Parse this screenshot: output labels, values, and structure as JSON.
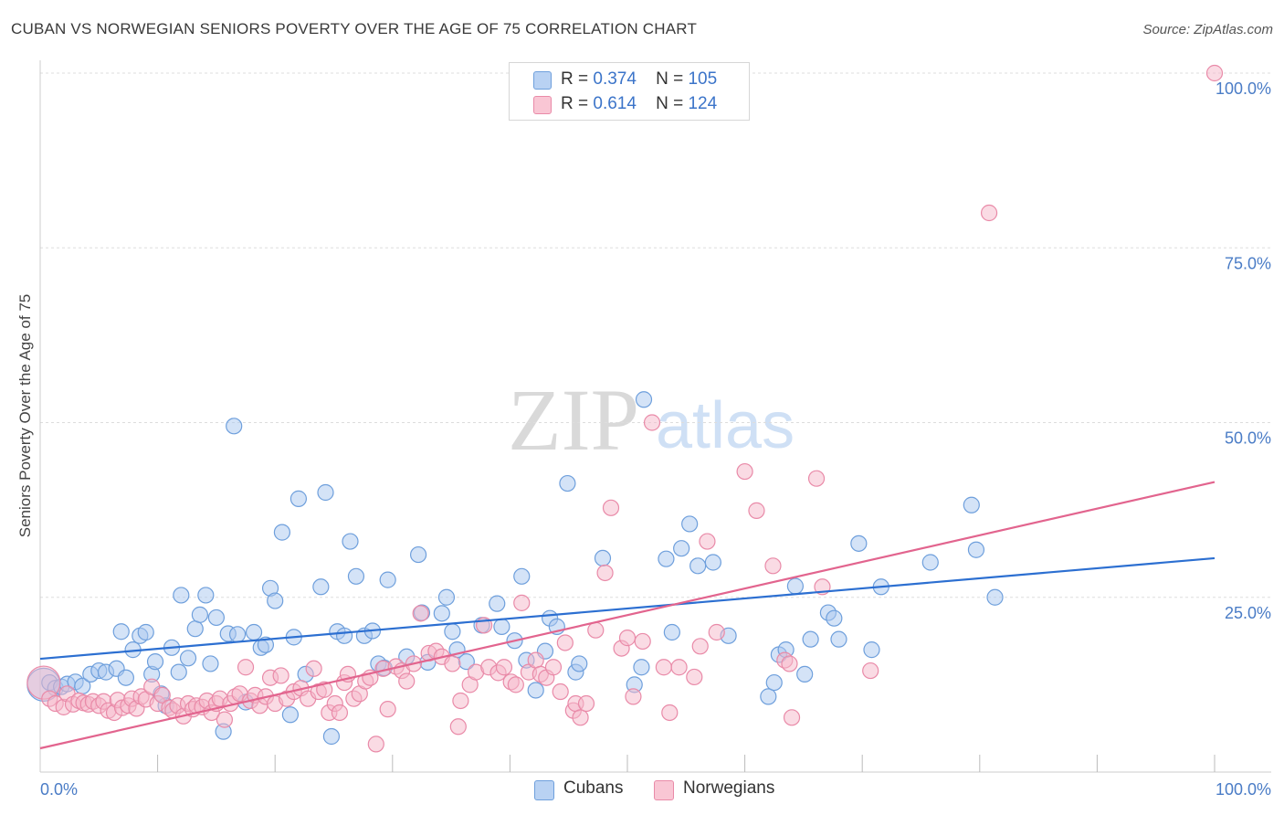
{
  "header": {
    "title": "CUBAN VS NORWEGIAN SENIORS POVERTY OVER THE AGE OF 75 CORRELATION CHART",
    "source": "Source: ZipAtlas.com"
  },
  "colors": {
    "cubans_fill": "#a9c8f0",
    "cubans_stroke": "#6e9fdc",
    "cubans_line": "#2c6fd1",
    "norwegians_fill": "#f6b8ca",
    "norwegians_stroke": "#e98aa8",
    "norwegians_line": "#e2648e",
    "tick_label": "#4a7cc6",
    "grid": "#dddddd"
  },
  "legend": {
    "rows": [
      {
        "r_label": "R =",
        "r_value": "0.374",
        "n_label": "N =",
        "n_value": "105"
      },
      {
        "r_label": "R =",
        "r_value": "0.614",
        "n_label": "N =",
        "n_value": "124"
      }
    ]
  },
  "bottom_legend": {
    "cubans": "Cubans",
    "norwegians": "Norwegians"
  },
  "watermark": {
    "zip": "ZIP",
    "atlas": "atlas"
  },
  "chart_data": {
    "type": "scatter",
    "title": "CUBAN VS NORWEGIAN SENIORS POVERTY OVER THE AGE OF 75 CORRELATION CHART",
    "xlabel": "",
    "ylabel": "Seniors Poverty Over the Age of 75",
    "xlim": [
      0,
      100
    ],
    "ylim": [
      0,
      100
    ],
    "x_tick_labels": [
      "0.0%",
      "100.0%"
    ],
    "y_ticks": [
      25,
      50,
      75,
      100
    ],
    "y_tick_labels": [
      "25.0%",
      "50.0%",
      "75.0%",
      "100.0%"
    ],
    "grid": true,
    "legend_position": "top-center",
    "series": [
      {
        "name": "Cubans",
        "r": 0.374,
        "n": 105,
        "trend": {
          "x": [
            0,
            100
          ],
          "y": [
            16.2,
            30.6
          ]
        },
        "points": [
          [
            0.3,
            12.5
          ],
          [
            0.8,
            12.8
          ],
          [
            1.3,
            12.0
          ],
          [
            1.8,
            12.2
          ],
          [
            2.3,
            12.6
          ],
          [
            3.0,
            12.9
          ],
          [
            3.6,
            12.3
          ],
          [
            4.3,
            14.0
          ],
          [
            5.0,
            14.5
          ],
          [
            5.6,
            14.3
          ],
          [
            6.5,
            14.8
          ],
          [
            6.9,
            20.1
          ],
          [
            7.3,
            13.5
          ],
          [
            7.9,
            17.5
          ],
          [
            8.5,
            19.5
          ],
          [
            9.0,
            20.0
          ],
          [
            9.5,
            14.0
          ],
          [
            9.8,
            15.8
          ],
          [
            10.3,
            11.2
          ],
          [
            10.7,
            9.5
          ],
          [
            11.2,
            17.8
          ],
          [
            11.8,
            14.3
          ],
          [
            12.0,
            25.3
          ],
          [
            12.6,
            16.3
          ],
          [
            13.2,
            20.5
          ],
          [
            13.6,
            22.5
          ],
          [
            14.1,
            25.3
          ],
          [
            14.5,
            15.5
          ],
          [
            15.0,
            22.1
          ],
          [
            15.6,
            5.8
          ],
          [
            16.0,
            19.8
          ],
          [
            16.5,
            49.5
          ],
          [
            16.8,
            19.7
          ],
          [
            17.5,
            10.0
          ],
          [
            18.2,
            20.0
          ],
          [
            18.8,
            17.8
          ],
          [
            19.2,
            18.2
          ],
          [
            19.6,
            26.3
          ],
          [
            20.0,
            24.5
          ],
          [
            20.6,
            34.3
          ],
          [
            21.3,
            8.2
          ],
          [
            21.6,
            19.3
          ],
          [
            22.0,
            39.1
          ],
          [
            22.6,
            14.0
          ],
          [
            23.9,
            26.5
          ],
          [
            24.3,
            40.0
          ],
          [
            24.8,
            5.1
          ],
          [
            25.3,
            20.1
          ],
          [
            25.9,
            19.5
          ],
          [
            26.4,
            33.0
          ],
          [
            26.9,
            28.0
          ],
          [
            27.6,
            19.5
          ],
          [
            28.3,
            20.2
          ],
          [
            28.8,
            15.5
          ],
          [
            29.3,
            14.9
          ],
          [
            29.6,
            27.5
          ],
          [
            31.2,
            16.5
          ],
          [
            32.5,
            22.8
          ],
          [
            33.0,
            15.7
          ],
          [
            32.2,
            31.1
          ],
          [
            34.2,
            22.7
          ],
          [
            34.6,
            25.0
          ],
          [
            35.1,
            20.1
          ],
          [
            35.5,
            17.5
          ],
          [
            36.3,
            15.8
          ],
          [
            37.6,
            21.0
          ],
          [
            38.9,
            24.1
          ],
          [
            39.3,
            20.8
          ],
          [
            40.4,
            18.8
          ],
          [
            41.0,
            28.0
          ],
          [
            41.4,
            16.0
          ],
          [
            42.2,
            11.7
          ],
          [
            43.0,
            17.3
          ],
          [
            43.4,
            22.0
          ],
          [
            44.0,
            20.8
          ],
          [
            44.9,
            41.3
          ],
          [
            45.6,
            14.3
          ],
          [
            45.9,
            15.5
          ],
          [
            47.9,
            30.6
          ],
          [
            50.6,
            12.5
          ],
          [
            51.2,
            15.0
          ],
          [
            51.4,
            53.3
          ],
          [
            53.3,
            30.5
          ],
          [
            53.8,
            20.0
          ],
          [
            54.6,
            32.0
          ],
          [
            55.3,
            35.5
          ],
          [
            56.0,
            29.5
          ],
          [
            57.3,
            30.0
          ],
          [
            58.6,
            19.5
          ],
          [
            62.0,
            10.8
          ],
          [
            62.5,
            12.8
          ],
          [
            62.9,
            16.8
          ],
          [
            63.5,
            17.5
          ],
          [
            64.3,
            26.6
          ],
          [
            65.1,
            14.0
          ],
          [
            65.6,
            19.0
          ],
          [
            67.1,
            22.8
          ],
          [
            67.6,
            22.0
          ],
          [
            68.0,
            19.0
          ],
          [
            69.7,
            32.7
          ],
          [
            70.8,
            17.5
          ],
          [
            71.6,
            26.5
          ],
          [
            75.8,
            30.0
          ],
          [
            79.3,
            38.2
          ],
          [
            79.7,
            31.8
          ],
          [
            81.3,
            25.0
          ]
        ]
      },
      {
        "name": "Norwegians",
        "r": 0.614,
        "n": 124,
        "trend": {
          "x": [
            0,
            100
          ],
          "y": [
            3.4,
            41.5
          ]
        },
        "points": [
          [
            0.3,
            12.8
          ],
          [
            0.8,
            10.5
          ],
          [
            1.3,
            9.8
          ],
          [
            2.0,
            9.3
          ],
          [
            2.3,
            11.2
          ],
          [
            2.8,
            9.7
          ],
          [
            3.3,
            10.2
          ],
          [
            3.7,
            9.9
          ],
          [
            4.1,
            9.7
          ],
          [
            4.5,
            10.1
          ],
          [
            5.0,
            9.5
          ],
          [
            5.4,
            10.1
          ],
          [
            5.8,
            8.8
          ],
          [
            6.3,
            8.5
          ],
          [
            6.6,
            10.3
          ],
          [
            7.0,
            9.2
          ],
          [
            7.5,
            9.5
          ],
          [
            7.8,
            10.5
          ],
          [
            8.2,
            9.1
          ],
          [
            8.6,
            10.8
          ],
          [
            9.0,
            10.4
          ],
          [
            9.5,
            12.2
          ],
          [
            10.0,
            9.8
          ],
          [
            10.4,
            11.0
          ],
          [
            11.0,
            9.2
          ],
          [
            11.3,
            8.8
          ],
          [
            11.7,
            9.5
          ],
          [
            12.2,
            8.0
          ],
          [
            12.6,
            9.8
          ],
          [
            13.0,
            9.0
          ],
          [
            13.3,
            9.5
          ],
          [
            13.8,
            9.3
          ],
          [
            14.2,
            10.2
          ],
          [
            14.6,
            8.5
          ],
          [
            15.0,
            9.8
          ],
          [
            15.3,
            10.5
          ],
          [
            15.7,
            7.5
          ],
          [
            16.2,
            9.8
          ],
          [
            16.6,
            10.8
          ],
          [
            17.0,
            11.2
          ],
          [
            17.5,
            15.0
          ],
          [
            17.9,
            10.2
          ],
          [
            18.3,
            11.0
          ],
          [
            18.7,
            9.5
          ],
          [
            19.2,
            10.8
          ],
          [
            19.6,
            13.5
          ],
          [
            20.0,
            9.8
          ],
          [
            20.5,
            13.8
          ],
          [
            21.0,
            10.5
          ],
          [
            21.6,
            11.5
          ],
          [
            22.2,
            12.0
          ],
          [
            22.8,
            10.5
          ],
          [
            23.3,
            14.8
          ],
          [
            23.7,
            11.5
          ],
          [
            24.2,
            11.8
          ],
          [
            24.6,
            8.5
          ],
          [
            25.1,
            9.8
          ],
          [
            25.5,
            8.5
          ],
          [
            25.9,
            12.8
          ],
          [
            26.2,
            14.0
          ],
          [
            26.7,
            10.5
          ],
          [
            27.2,
            11.2
          ],
          [
            27.7,
            13.0
          ],
          [
            28.1,
            13.5
          ],
          [
            28.6,
            4.0
          ],
          [
            29.2,
            14.8
          ],
          [
            29.6,
            9.0
          ],
          [
            30.3,
            15.1
          ],
          [
            30.8,
            14.5
          ],
          [
            31.2,
            13.0
          ],
          [
            31.8,
            15.5
          ],
          [
            32.4,
            22.7
          ],
          [
            33.1,
            17.0
          ],
          [
            33.7,
            17.3
          ],
          [
            34.2,
            16.5
          ],
          [
            35.1,
            15.5
          ],
          [
            35.6,
            6.5
          ],
          [
            35.8,
            10.2
          ],
          [
            36.6,
            12.5
          ],
          [
            37.1,
            14.3
          ],
          [
            37.8,
            21.0
          ],
          [
            38.2,
            15.0
          ],
          [
            39.0,
            14.2
          ],
          [
            39.5,
            15.0
          ],
          [
            40.1,
            12.9
          ],
          [
            40.5,
            12.5
          ],
          [
            41.0,
            24.2
          ],
          [
            41.6,
            14.3
          ],
          [
            42.2,
            16.0
          ],
          [
            42.6,
            14.0
          ],
          [
            43.1,
            13.5
          ],
          [
            43.7,
            15.0
          ],
          [
            44.3,
            11.5
          ],
          [
            44.7,
            18.5
          ],
          [
            45.4,
            8.8
          ],
          [
            45.6,
            9.8
          ],
          [
            46.0,
            7.8
          ],
          [
            46.5,
            9.8
          ],
          [
            47.3,
            20.3
          ],
          [
            48.1,
            28.5
          ],
          [
            48.6,
            37.8
          ],
          [
            49.5,
            17.7
          ],
          [
            50.0,
            19.2
          ],
          [
            50.5,
            10.8
          ],
          [
            51.3,
            18.7
          ],
          [
            52.1,
            50.0
          ],
          [
            53.1,
            15.0
          ],
          [
            53.6,
            8.5
          ],
          [
            54.4,
            15.0
          ],
          [
            55.7,
            13.6
          ],
          [
            56.2,
            18.0
          ],
          [
            56.8,
            33.0
          ],
          [
            57.6,
            20.0
          ],
          [
            60.0,
            43.0
          ],
          [
            61.0,
            37.4
          ],
          [
            62.4,
            29.5
          ],
          [
            63.4,
            16.0
          ],
          [
            63.8,
            15.5
          ],
          [
            64.0,
            7.8
          ],
          [
            66.1,
            42.0
          ],
          [
            66.6,
            26.5
          ],
          [
            70.7,
            14.5
          ],
          [
            80.8,
            80.0
          ],
          [
            100.0,
            100.0
          ]
        ]
      }
    ]
  }
}
